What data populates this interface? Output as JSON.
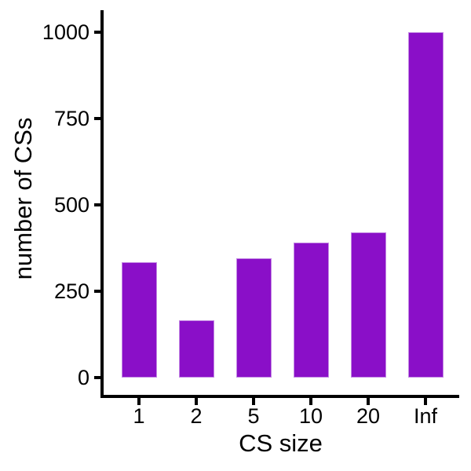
{
  "chart_data": {
    "type": "bar",
    "categories": [
      "1",
      "2",
      "5",
      "10",
      "20",
      "Inf"
    ],
    "values": [
      335,
      165,
      345,
      390,
      420,
      1000
    ],
    "title": "",
    "xlabel": "CS size",
    "ylabel": "number of CSs",
    "ylim": [
      0,
      1000
    ],
    "yticks": [
      0,
      250,
      500,
      750,
      1000
    ],
    "grid": false,
    "legend": false,
    "bar_fill": "#8A0FC8",
    "bar_edge": "#C389E3",
    "axis_color": "#000000",
    "background": "#FFFFFF"
  }
}
